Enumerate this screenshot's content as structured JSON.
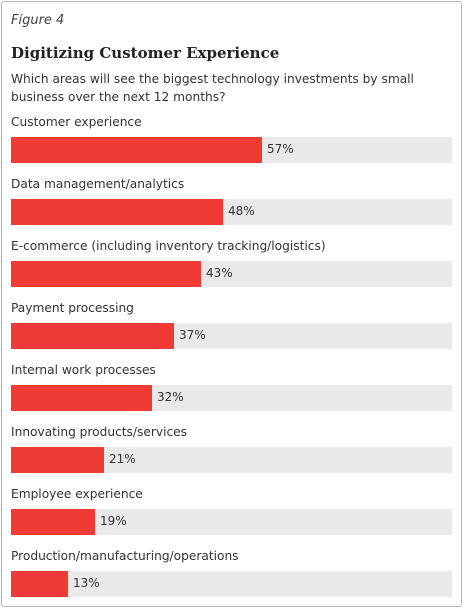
{
  "figure_label": "Figure 4",
  "colors": {
    "bar": "#ef3a35",
    "track": "#e9e9e9"
  },
  "chart_data": {
    "type": "bar",
    "orientation": "horizontal",
    "title": "Digitizing Customer Experience",
    "subtitle": "Which areas will see the biggest technology investments by small business over the next 12 months?",
    "unit": "%",
    "xlim": [
      0,
      100
    ],
    "categories": [
      "Customer experience",
      "Data management/analytics",
      "E-commerce (including inventory tracking/logistics)",
      "Payment processing",
      "Internal work processes",
      "Innovating products/services",
      "Employee experience",
      "Production/manufacturing/operations"
    ],
    "values": [
      57,
      48,
      43,
      37,
      32,
      21,
      19,
      13
    ],
    "value_labels": [
      "57%",
      "48%",
      "43%",
      "37%",
      "32%",
      "21%",
      "19%",
      "13%"
    ]
  }
}
